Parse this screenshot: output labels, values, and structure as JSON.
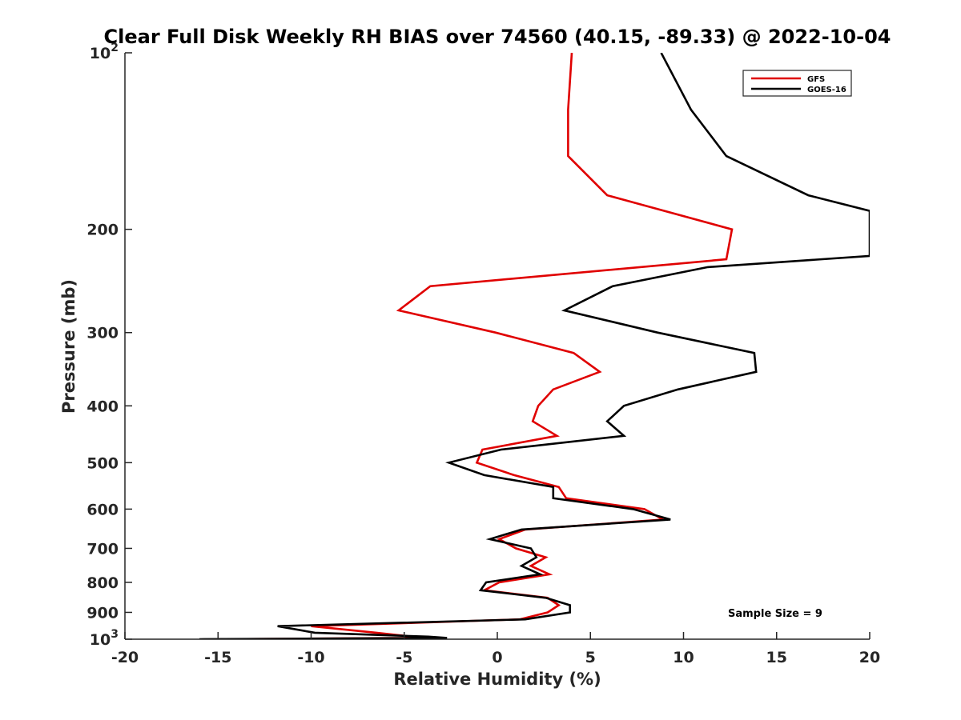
{
  "chart_data": {
    "type": "line",
    "title": "Clear Full Disk Weekly RH BIAS over 74560 (40.15, -89.33) @ 2022-10-04",
    "xlabel": "Relative Humidity (%)",
    "ylabel": "Pressure (mb)",
    "xlim": [
      -20,
      20
    ],
    "ylim": [
      1000,
      100
    ],
    "y_scale": "log",
    "y_reversed": true,
    "grid": false,
    "legend_position": "top-right",
    "x_ticks": [
      "-20",
      "-15",
      "-10",
      "-5",
      "0",
      "5",
      "10",
      "15",
      "20"
    ],
    "y_ticks": [
      {
        "value": 100,
        "base": "10",
        "exp": "2"
      },
      {
        "value": 200,
        "label": "200"
      },
      {
        "value": 300,
        "label": "300"
      },
      {
        "value": 400,
        "label": "400"
      },
      {
        "value": 500,
        "label": "500"
      },
      {
        "value": 600,
        "label": "600"
      },
      {
        "value": 700,
        "label": "700"
      },
      {
        "value": 800,
        "label": "800"
      },
      {
        "value": 900,
        "label": "900"
      },
      {
        "value": 1000,
        "base": "10",
        "exp": "3"
      }
    ],
    "series": [
      {
        "name": "GFS",
        "color": "#e00000",
        "points": [
          [
            4.0,
            100
          ],
          [
            3.8,
            125
          ],
          [
            3.8,
            150
          ],
          [
            5.9,
            175
          ],
          [
            12.6,
            200
          ],
          [
            12.3,
            225
          ],
          [
            -3.6,
            250
          ],
          [
            -5.3,
            275
          ],
          [
            -0.1,
            300
          ],
          [
            4.1,
            325
          ],
          [
            5.5,
            350
          ],
          [
            3.0,
            375
          ],
          [
            2.2,
            400
          ],
          [
            1.9,
            425
          ],
          [
            3.2,
            450
          ],
          [
            -0.8,
            475
          ],
          [
            -1.1,
            500
          ],
          [
            0.9,
            525
          ],
          [
            3.3,
            550
          ],
          [
            3.7,
            575
          ],
          [
            7.9,
            600
          ],
          [
            8.9,
            625
          ],
          [
            1.5,
            650
          ],
          [
            0.1,
            675
          ],
          [
            1.0,
            700
          ],
          [
            2.6,
            725
          ],
          [
            1.8,
            750
          ],
          [
            2.8,
            775
          ],
          [
            0.1,
            800
          ],
          [
            -0.7,
            825
          ],
          [
            2.7,
            850
          ],
          [
            3.3,
            875
          ],
          [
            2.7,
            900
          ],
          [
            1.2,
            925
          ],
          [
            -10.0,
            950
          ],
          [
            -6.5,
            975
          ],
          [
            -4.6,
            990
          ],
          [
            -4.3,
            995
          ],
          [
            -15.0,
            1000
          ]
        ]
      },
      {
        "name": "GOES-16",
        "color": "#000000",
        "points": [
          [
            8.8,
            100
          ],
          [
            10.4,
            125
          ],
          [
            12.3,
            150
          ],
          [
            16.7,
            175
          ],
          [
            20.0,
            186
          ],
          [
            20.0,
            222
          ],
          [
            11.3,
            232
          ],
          [
            6.2,
            250
          ],
          [
            3.6,
            275
          ],
          [
            8.6,
            300
          ],
          [
            13.8,
            325
          ],
          [
            13.9,
            350
          ],
          [
            9.7,
            375
          ],
          [
            6.8,
            400
          ],
          [
            5.9,
            425
          ],
          [
            6.8,
            450
          ],
          [
            0.2,
            475
          ],
          [
            -2.6,
            500
          ],
          [
            -0.7,
            525
          ],
          [
            3.0,
            550
          ],
          [
            3.0,
            575
          ],
          [
            7.3,
            600
          ],
          [
            9.3,
            625
          ],
          [
            1.3,
            650
          ],
          [
            -0.4,
            675
          ],
          [
            1.8,
            700
          ],
          [
            2.1,
            725
          ],
          [
            1.3,
            750
          ],
          [
            2.3,
            775
          ],
          [
            -0.6,
            800
          ],
          [
            -0.9,
            825
          ],
          [
            2.6,
            850
          ],
          [
            3.9,
            875
          ],
          [
            3.9,
            900
          ],
          [
            1.5,
            925
          ],
          [
            -11.8,
            950
          ],
          [
            -9.8,
            975
          ],
          [
            -3.7,
            990
          ],
          [
            -2.7,
            995
          ],
          [
            -16.0,
            1000
          ]
        ]
      }
    ],
    "annotation": "Sample Size = 9"
  }
}
